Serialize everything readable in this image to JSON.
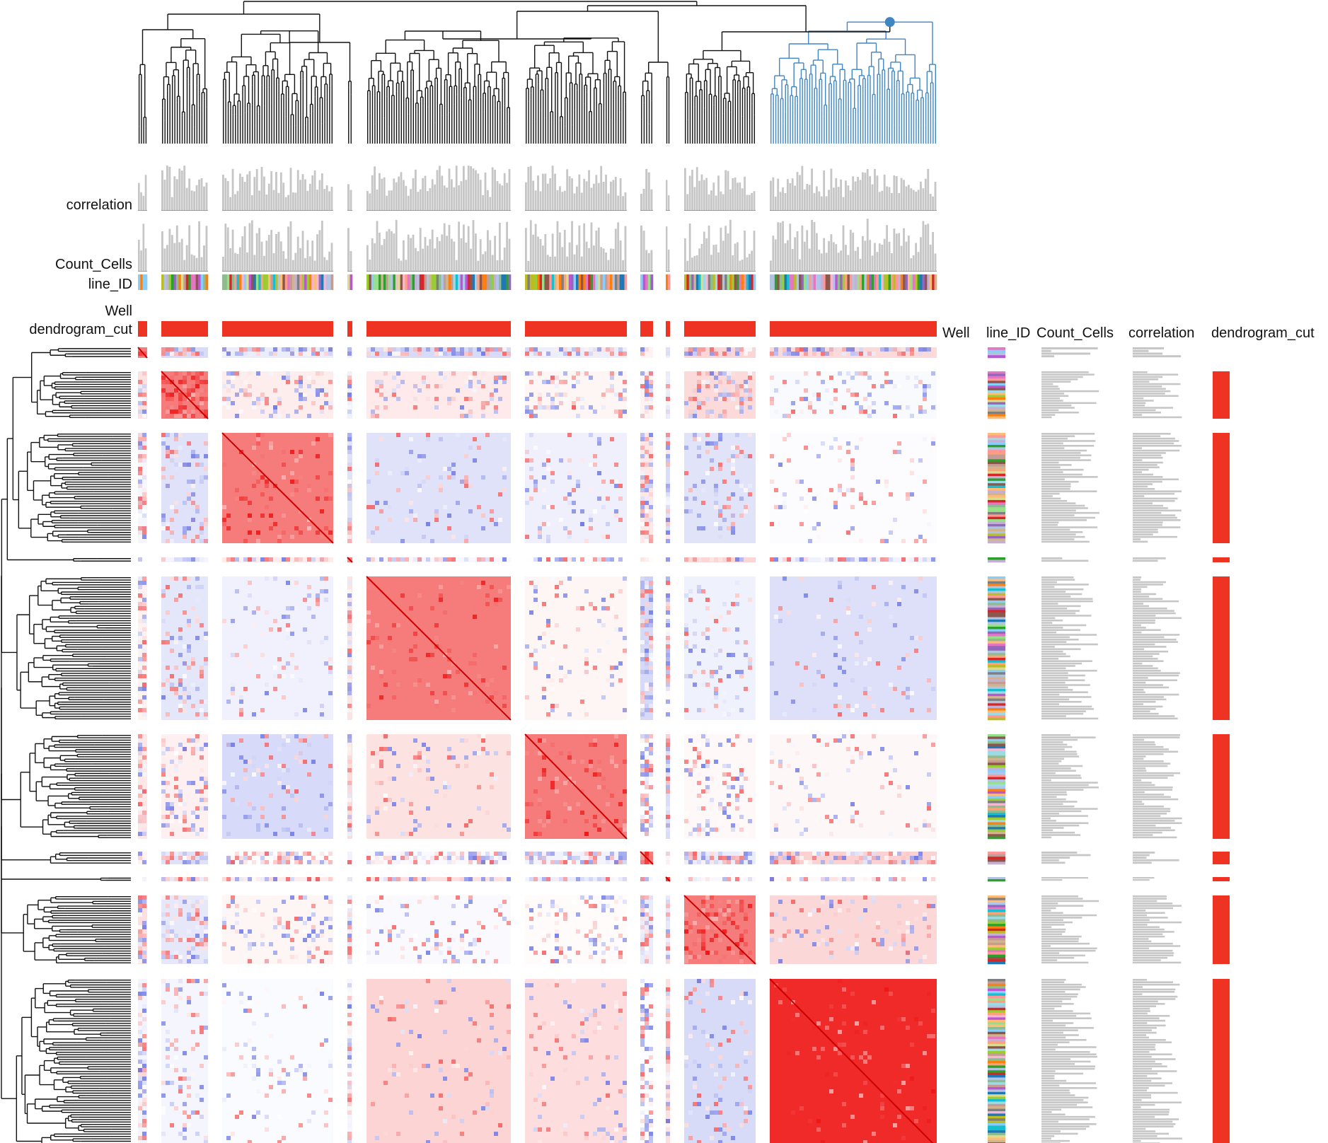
{
  "chart_data": {
    "type": "heatmap",
    "title": "",
    "description_free": true,
    "column_labels": {
      "well": "Well",
      "dendrogram_cut": "dendrogram_cut",
      "line_id": "line_ID",
      "count_cells": "Count_Cells",
      "correlation": "correlation"
    },
    "row_annotation_headers": [
      "Well",
      "line_ID",
      "Count_Cells",
      "correlation",
      "dendrogram_cut"
    ],
    "clusters": [
      {
        "id": 1,
        "n_items": 4
      },
      {
        "id": 2,
        "n_items": 18
      },
      {
        "id": 3,
        "n_items": 42
      },
      {
        "id": 4,
        "n_items": 2
      },
      {
        "id": 5,
        "n_items": 55
      },
      {
        "id": 6,
        "n_items": 40
      },
      {
        "id": 7,
        "n_items": 5
      },
      {
        "id": 8,
        "n_items": 1
      },
      {
        "id": 9,
        "n_items": 27
      },
      {
        "id": 10,
        "n_items": 64
      }
    ],
    "selected_cluster": 10,
    "color_scale": {
      "low": "#2b3bd8",
      "mid": "#ffffff",
      "high": "#ee1111",
      "range": [
        -1,
        1
      ]
    },
    "dendrogram_color": "#111111",
    "highlight_color": "#3f86c4",
    "bar_color": "#c6c6c6",
    "cut_color": "#ee3322",
    "grid": false,
    "legend": "none"
  }
}
